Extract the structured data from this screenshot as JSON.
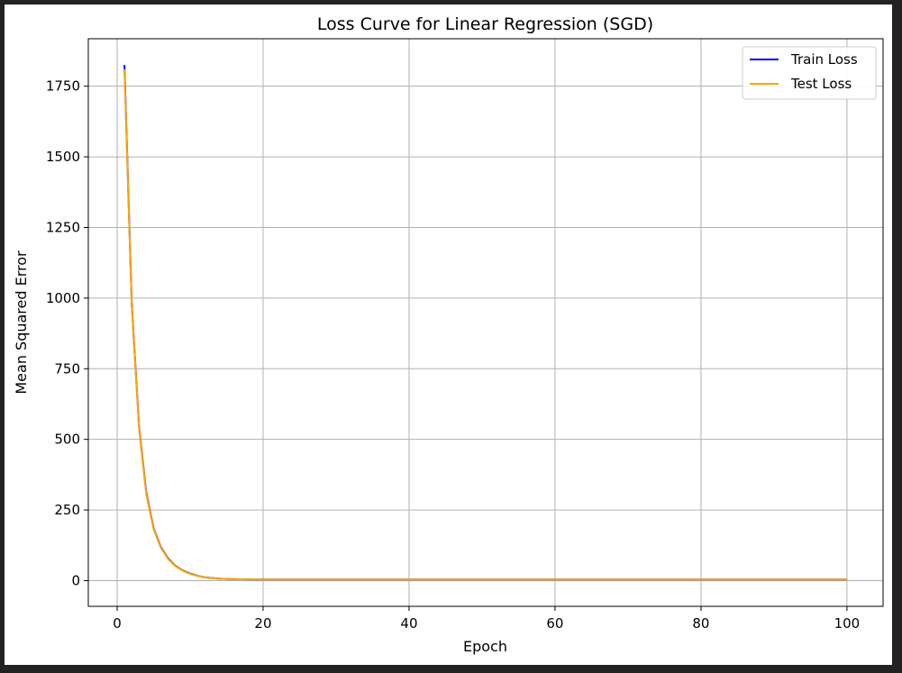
{
  "chart_data": {
    "type": "line",
    "title": "Loss Curve for Linear Regression (SGD)",
    "xlabel": "Epoch",
    "ylabel": "Mean Squared Error",
    "xlim": [
      -3.95,
      104.95
    ],
    "ylim": [
      -91,
      1918
    ],
    "xticks": [
      0,
      20,
      40,
      60,
      80,
      100
    ],
    "yticks": [
      0,
      250,
      500,
      750,
      1000,
      1250,
      1500,
      1750
    ],
    "grid": true,
    "legend_position": "top-right",
    "x": [
      1,
      2,
      3,
      4,
      5,
      6,
      7,
      8,
      9,
      10,
      11,
      12,
      13,
      14,
      15,
      16,
      17,
      18,
      19,
      20,
      25,
      30,
      40,
      50,
      60,
      70,
      80,
      90,
      100
    ],
    "series": [
      {
        "name": "Train Loss",
        "color": "#0000ff",
        "values": [
          1825,
          980,
          545,
          310,
          185,
          118,
          78,
          52,
          36,
          25,
          17,
          12,
          9,
          7,
          6,
          5,
          4.5,
          4.2,
          4,
          3.9,
          3.8,
          3.8,
          3.8,
          3.8,
          3.8,
          3.8,
          3.8,
          3.8,
          3.8
        ]
      },
      {
        "name": "Test Loss",
        "color": "#ffa500",
        "values": [
          1810,
          975,
          540,
          305,
          182,
          116,
          76,
          51,
          35,
          24,
          16.5,
          11.5,
          8.5,
          6.8,
          5.8,
          5,
          4.6,
          4.3,
          4.1,
          4,
          3.9,
          3.9,
          3.9,
          3.9,
          3.9,
          3.9,
          3.9,
          3.9,
          3.9
        ]
      }
    ]
  }
}
